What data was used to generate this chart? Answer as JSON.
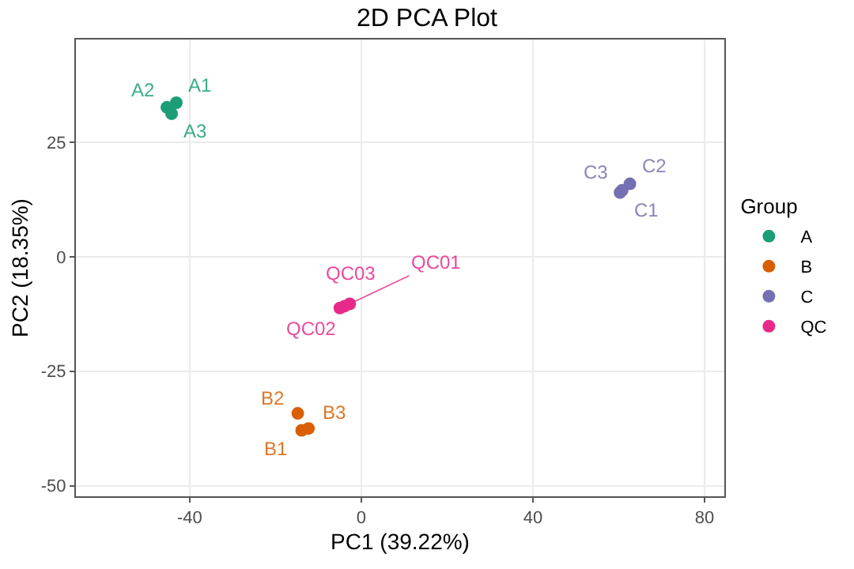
{
  "chart_data": {
    "type": "scatter",
    "title": "2D PCA Plot",
    "xlabel": "PC1 (39.22%)",
    "ylabel": "PC2 (18.35%)",
    "legend_title": "Group",
    "series": [
      {
        "name": "A",
        "color": "#1b9e77",
        "x": [
          -43.1,
          -45.3,
          -44.2
        ],
        "values": [
          33.6,
          32.6,
          31.2
        ]
      },
      {
        "name": "B",
        "color": "#d95f02",
        "x": [
          -13.9,
          -14.8,
          -12.3
        ],
        "values": [
          -37.9,
          -34.2,
          -37.5
        ]
      },
      {
        "name": "C",
        "color": "#7570b3",
        "x": [
          60.3,
          62.6,
          60.8
        ],
        "values": [
          14.0,
          15.9,
          14.5
        ]
      },
      {
        "name": "QC",
        "color": "#e7298a",
        "x": [
          -2.7,
          -5.0,
          -3.9
        ],
        "values": [
          -10.3,
          -11.2,
          -10.8
        ]
      }
    ],
    "annotations": [
      {
        "text": "A1",
        "x": -43.1,
        "y": 33.6
      },
      {
        "text": "A2",
        "x": -45.3,
        "y": 32.6
      },
      {
        "text": "A3",
        "x": -44.2,
        "y": 31.2
      },
      {
        "text": "B1",
        "x": -13.9,
        "y": -37.9
      },
      {
        "text": "B2",
        "x": -14.8,
        "y": -34.2
      },
      {
        "text": "B3",
        "x": -12.3,
        "y": -37.5
      },
      {
        "text": "C1",
        "x": 60.3,
        "y": 14.0
      },
      {
        "text": "C2",
        "x": 62.6,
        "y": 15.9
      },
      {
        "text": "C3",
        "x": 60.8,
        "y": 14.5
      },
      {
        "text": "QC01",
        "x": -2.7,
        "y": -10.3
      },
      {
        "text": "QC02",
        "x": -5.0,
        "y": -11.2
      },
      {
        "text": "QC03",
        "x": -3.9,
        "y": -10.8
      }
    ],
    "xlim": [
      -66.5,
      84.6
    ],
    "ylim": [
      -52.3,
      47.4
    ],
    "xticks": [
      -40,
      0,
      40,
      80
    ],
    "yticks": [
      -50,
      -25,
      0,
      25
    ],
    "grid": true,
    "legend": "right",
    "marker": "circle"
  }
}
